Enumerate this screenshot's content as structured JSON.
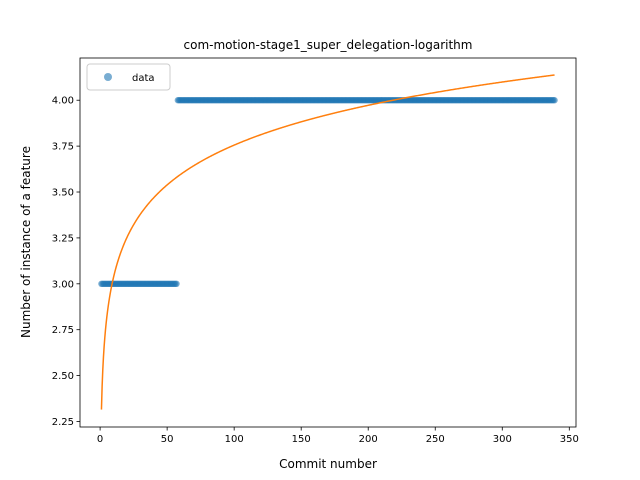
{
  "chart_data": {
    "type": "scatter",
    "title": "com-motion-stage1_super_delegation-logarithm",
    "xlabel": "Commit number",
    "ylabel": "Number of instance of a feature",
    "xlim": [
      -15,
      355
    ],
    "ylim": [
      2.22,
      4.23
    ],
    "xticks": [
      0,
      50,
      100,
      150,
      200,
      250,
      300,
      350
    ],
    "yticks": [
      2.25,
      2.5,
      2.75,
      3.0,
      3.25,
      3.5,
      3.75,
      4.0
    ],
    "ytick_labels": [
      "2.25",
      "2.50",
      "2.75",
      "3.00",
      "3.25",
      "3.50",
      "3.75",
      "4.00"
    ],
    "legend": {
      "position": "top-left",
      "entries": [
        "data"
      ]
    },
    "series": [
      {
        "name": "data",
        "kind": "points",
        "color": "#1f77b4",
        "segments": [
          {
            "x_start": 1,
            "x_end": 57,
            "y": 3.0
          },
          {
            "x_start": 58,
            "x_end": 339,
            "y": 4.0
          }
        ]
      },
      {
        "kind": "fit-line",
        "color": "#ff7f0e",
        "model": "logarithmic",
        "a": 2.315,
        "b": 0.3128,
        "x_start": 1,
        "x_end": 339
      }
    ],
    "grid": false
  }
}
